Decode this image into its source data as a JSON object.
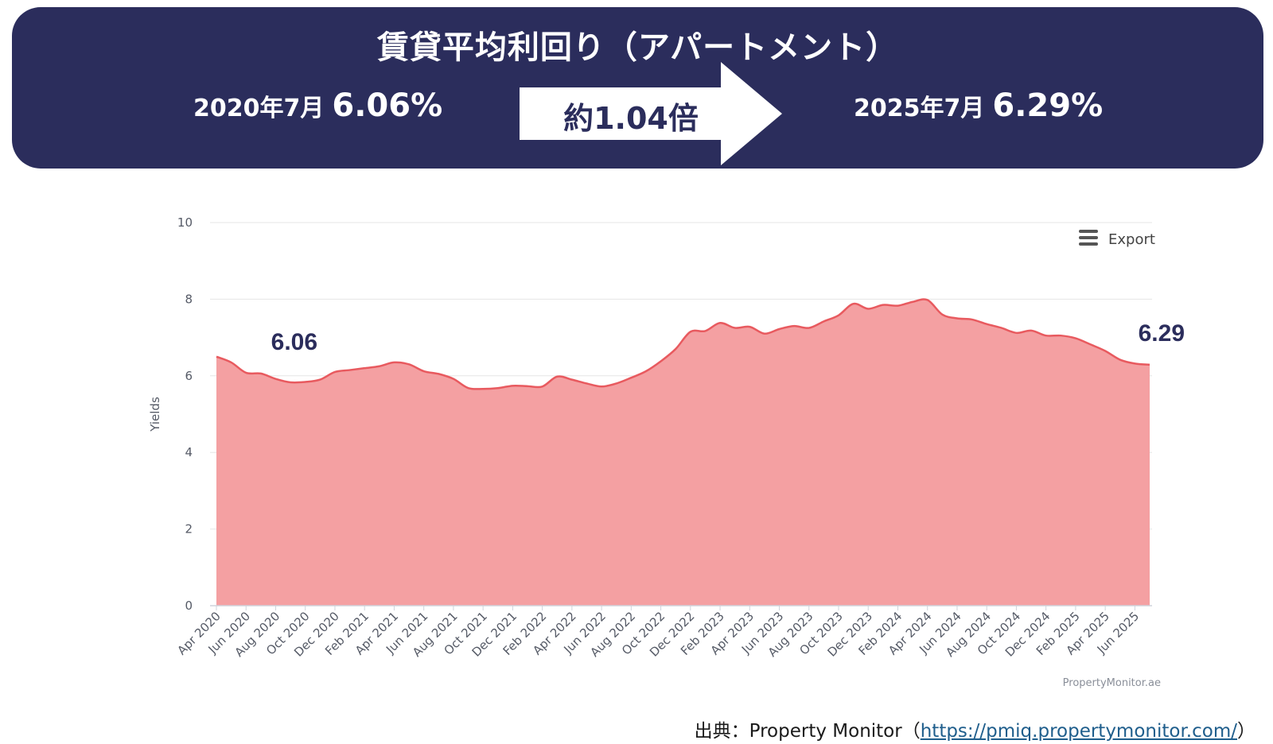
{
  "banner": {
    "title": "賃貸平均利回り（アパートメント）",
    "left_date": "2020年7月",
    "left_value": "6.06%",
    "ratio_label": "約1.04倍",
    "right_date": "2025年7月",
    "right_value": "6.29%"
  },
  "chart_data": {
    "type": "area",
    "ylabel": "Yields",
    "ylim": [
      0,
      10
    ],
    "yticks": [
      0,
      2,
      4,
      6,
      8,
      10
    ],
    "x_tick_labels": [
      "Apr 2020",
      "Jun 2020",
      "Aug 2020",
      "Oct 2020",
      "Dec 2020",
      "Feb 2021",
      "Apr 2021",
      "Jun 2021",
      "Aug 2021",
      "Oct 2021",
      "Dec 2021",
      "Feb 2022",
      "Apr 2022",
      "Jun 2022",
      "Aug 2022",
      "Oct 2022",
      "Dec 2022",
      "Feb 2023",
      "Apr 2023",
      "Jun 2023",
      "Aug 2023",
      "Oct 2023",
      "Dec 2023",
      "Feb 2024",
      "Apr 2024",
      "Jun 2024",
      "Aug 2024",
      "Oct 2024",
      "Dec 2024",
      "Feb 2025",
      "Apr 2025",
      "Jun 2025"
    ],
    "months": [
      "2020-04",
      "2020-05",
      "2020-06",
      "2020-07",
      "2020-08",
      "2020-09",
      "2020-10",
      "2020-11",
      "2020-12",
      "2021-01",
      "2021-02",
      "2021-03",
      "2021-04",
      "2021-05",
      "2021-06",
      "2021-07",
      "2021-08",
      "2021-09",
      "2021-10",
      "2021-11",
      "2021-12",
      "2022-01",
      "2022-02",
      "2022-03",
      "2022-04",
      "2022-05",
      "2022-06",
      "2022-07",
      "2022-08",
      "2022-09",
      "2022-10",
      "2022-11",
      "2022-12",
      "2023-01",
      "2023-02",
      "2023-03",
      "2023-04",
      "2023-05",
      "2023-06",
      "2023-07",
      "2023-08",
      "2023-09",
      "2023-10",
      "2023-11",
      "2023-12",
      "2024-01",
      "2024-02",
      "2024-03",
      "2024-04",
      "2024-05",
      "2024-06",
      "2024-07",
      "2024-08",
      "2024-09",
      "2024-10",
      "2024-11",
      "2024-12",
      "2025-01",
      "2025-02",
      "2025-03",
      "2025-04",
      "2025-05",
      "2025-06",
      "2025-07"
    ],
    "values": [
      6.5,
      6.35,
      6.08,
      6.06,
      5.92,
      5.83,
      5.84,
      5.9,
      6.1,
      6.15,
      6.2,
      6.25,
      6.35,
      6.3,
      6.12,
      6.05,
      5.92,
      5.68,
      5.66,
      5.68,
      5.74,
      5.73,
      5.72,
      5.98,
      5.9,
      5.8,
      5.72,
      5.8,
      5.95,
      6.12,
      6.38,
      6.7,
      7.15,
      7.17,
      7.38,
      7.25,
      7.28,
      7.1,
      7.22,
      7.3,
      7.25,
      7.42,
      7.58,
      7.88,
      7.75,
      7.85,
      7.83,
      7.93,
      7.98,
      7.6,
      7.5,
      7.47,
      7.35,
      7.25,
      7.12,
      7.18,
      7.05,
      7.05,
      6.98,
      6.82,
      6.65,
      6.42,
      6.32,
      6.29
    ],
    "annotations": [
      {
        "text": "6.06",
        "month": "2020-07",
        "value": 6.06
      },
      {
        "text": "6.29",
        "month": "2025-07",
        "value": 6.29
      }
    ],
    "fill_color": "#f4a0a2",
    "line_color": "#e85a5f",
    "export_label": "Export",
    "credit": "PropertyMonitor.ae"
  },
  "source": {
    "prefix": "出典：Property Monitor（",
    "url": "https://pmiq.propertymonitor.com/",
    "suffix": "）"
  }
}
